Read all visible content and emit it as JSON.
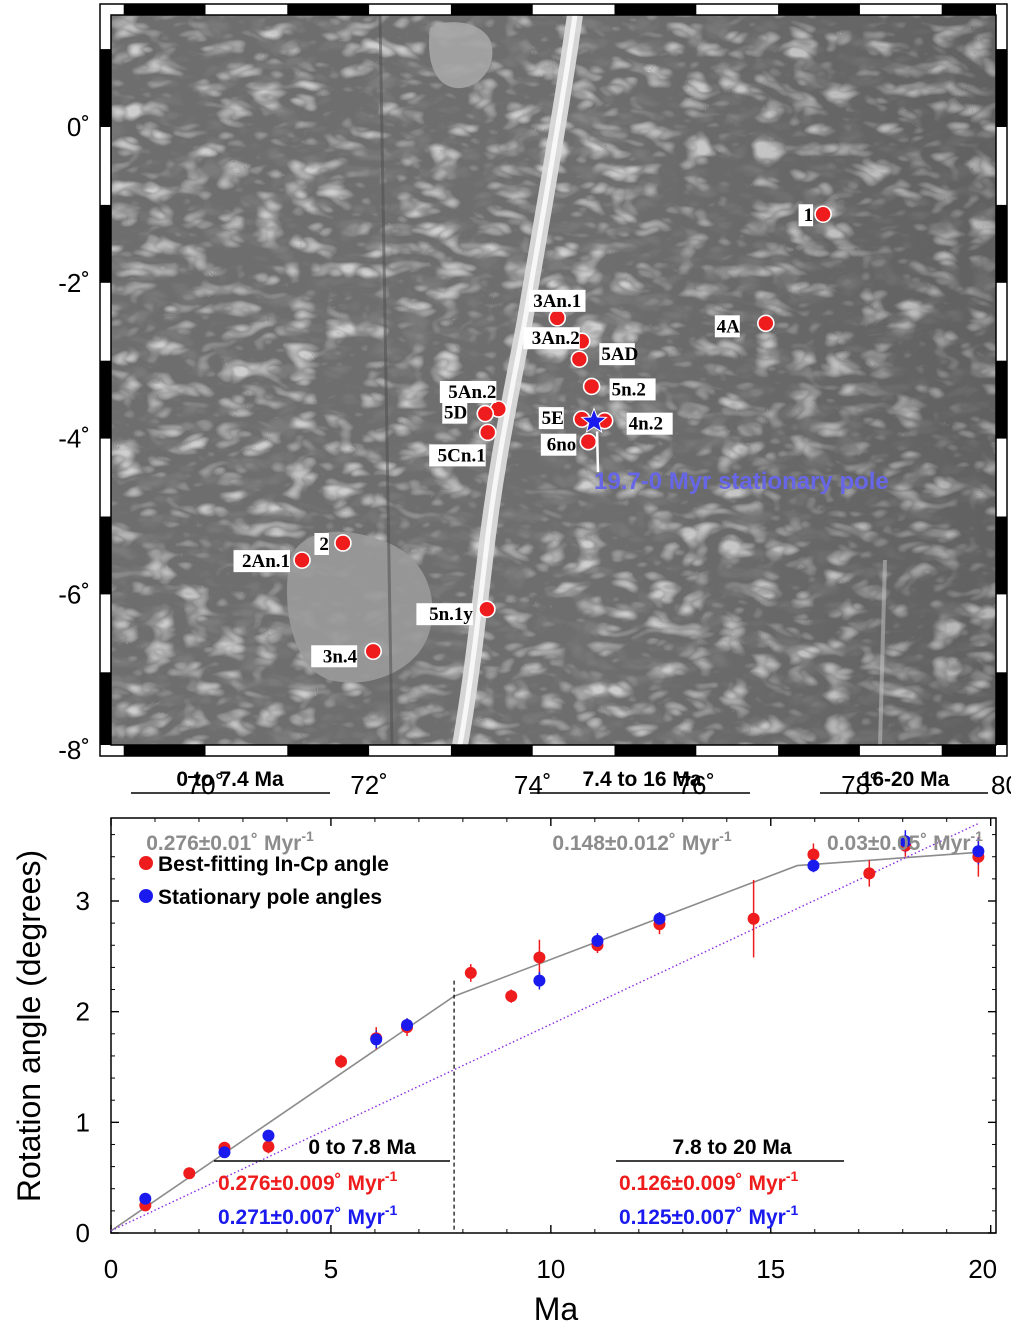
{
  "colors": {
    "red": "#ee1c1c",
    "blue": "#1a1aee",
    "gray": "#8c8c8c",
    "pole_label": "#6666e6",
    "map_base": "#6e6e6e",
    "ridge": "#d9d9d9"
  },
  "map": {
    "lon_ticks": [
      "70˚",
      "72˚",
      "74˚",
      "76˚",
      "78˚",
      "80"
    ],
    "lat_ticks": [
      "0˚",
      "-2˚",
      "-4˚",
      "-6˚",
      "-8˚"
    ],
    "pole_label": "19.7-0 Myr stationary pole",
    "sites": [
      {
        "label": "1",
        "lon": 77.55,
        "lat": -1.12
      },
      {
        "label": "3An.1",
        "lon": 74.3,
        "lat": -2.45
      },
      {
        "label": "4A",
        "lon": 76.85,
        "lat": -2.52
      },
      {
        "label": "3An.2",
        "lon": 74.6,
        "lat": -2.75
      },
      {
        "label": "5AD",
        "lon": 74.57,
        "lat": -2.98
      },
      {
        "label": "5n.2",
        "lon": 74.72,
        "lat": -3.33
      },
      {
        "label": "5An.2",
        "lon": 73.58,
        "lat": -3.62
      },
      {
        "label": "5D",
        "lon": 73.42,
        "lat": -3.68
      },
      {
        "label": "5E",
        "lon": 74.6,
        "lat": -3.75
      },
      {
        "label": "4n.2",
        "lon": 74.88,
        "lat": -3.77
      },
      {
        "label": "5Cn.1",
        "lon": 73.45,
        "lat": -3.92
      },
      {
        "label": "6no",
        "lon": 74.68,
        "lat": -4.04
      },
      {
        "label": "2",
        "lon": 71.68,
        "lat": -5.34
      },
      {
        "label": "2An.1",
        "lon": 71.18,
        "lat": -5.56
      },
      {
        "label": "5n.1y",
        "lon": 73.44,
        "lat": -6.19
      },
      {
        "label": "3n.4",
        "lon": 72.05,
        "lat": -6.73
      }
    ],
    "pole": {
      "lon": 74.75,
      "lat": -3.78
    }
  },
  "chart_data": {
    "type": "scatter",
    "xlabel": "Ma",
    "ylabel": "Rotation angle (degrees)",
    "xlim": [
      0,
      20
    ],
    "ylim": [
      0,
      3.75
    ],
    "x_ticks": [
      "0",
      "5",
      "10",
      "15",
      "20"
    ],
    "y_ticks": [
      "0",
      "1",
      "2",
      "3"
    ],
    "legend": [
      "Best-fitting In-Cp angle",
      "Stationary pole angles"
    ],
    "legend_position": "top-left",
    "series": [
      {
        "name": "Best-fitting In-Cp angle",
        "color": "red",
        "points": [
          {
            "x": 0.78,
            "y": 0.25,
            "err": 0.04
          },
          {
            "x": 1.78,
            "y": 0.54,
            "err": 0.03
          },
          {
            "x": 2.58,
            "y": 0.77,
            "err": 0.04
          },
          {
            "x": 3.58,
            "y": 0.78,
            "err": 0.06
          },
          {
            "x": 5.23,
            "y": 1.55,
            "err": 0.06
          },
          {
            "x": 6.03,
            "y": 1.76,
            "err": 0.1
          },
          {
            "x": 6.73,
            "y": 1.86,
            "err": 0.08
          },
          {
            "x": 8.18,
            "y": 2.35,
            "err": 0.08
          },
          {
            "x": 9.1,
            "y": 2.14,
            "err": 0.06
          },
          {
            "x": 9.74,
            "y": 2.49,
            "err": 0.16
          },
          {
            "x": 11.06,
            "y": 2.6,
            "err": 0.07
          },
          {
            "x": 12.47,
            "y": 2.79,
            "err": 0.09
          },
          {
            "x": 14.61,
            "y": 2.84,
            "err": 0.35
          },
          {
            "x": 15.97,
            "y": 3.42,
            "err": 0.1
          },
          {
            "x": 17.24,
            "y": 3.25,
            "err": 0.12
          },
          {
            "x": 18.06,
            "y": 3.5,
            "err": 0.1
          },
          {
            "x": 19.72,
            "y": 3.4,
            "err": 0.18
          }
        ]
      },
      {
        "name": "Stationary pole angles",
        "color": "blue",
        "points": [
          {
            "x": 0.78,
            "y": 0.31,
            "err": 0.02
          },
          {
            "x": 2.58,
            "y": 0.73,
            "err": 0.04
          },
          {
            "x": 3.58,
            "y": 0.88,
            "err": 0.04
          },
          {
            "x": 6.03,
            "y": 1.75,
            "err": 0.08
          },
          {
            "x": 6.73,
            "y": 1.88,
            "err": 0.06
          },
          {
            "x": 9.74,
            "y": 2.28,
            "err": 0.08
          },
          {
            "x": 11.06,
            "y": 2.64,
            "err": 0.07
          },
          {
            "x": 12.47,
            "y": 2.84,
            "err": 0.06
          },
          {
            "x": 15.97,
            "y": 3.32,
            "err": 0.06
          },
          {
            "x": 18.06,
            "y": 3.54,
            "err": 0.1
          },
          {
            "x": 19.72,
            "y": 3.45,
            "err": 0.12
          }
        ]
      }
    ],
    "piecewise_fit": {
      "color": "gray",
      "points": [
        [
          0,
          0.02
        ],
        [
          7.8,
          2.14
        ],
        [
          15.6,
          3.32
        ],
        [
          19.72,
          3.44
        ]
      ]
    },
    "linear_fit": {
      "color": "purple",
      "style": "dotted",
      "points": [
        [
          0,
          0.02
        ],
        [
          19.72,
          3.7
        ]
      ]
    },
    "divider_x": 7.8,
    "annotations": [
      {
        "title": "0 to 7.4 Ma",
        "rates": [
          {
            "text": "0.276±0.01˚ Myr",
            "color": "gray"
          }
        ]
      },
      {
        "title": "7.4 to 16 Ma",
        "rates": [
          {
            "text": "0.148±0.012˚ Myr",
            "color": "gray"
          }
        ]
      },
      {
        "title": "16-20 Ma",
        "rates": [
          {
            "text": "0.03±0.05˚ Myr",
            "color": "gray"
          }
        ]
      },
      {
        "title": "0 to 7.8 Ma",
        "rates": [
          {
            "text": "0.276±0.009˚ Myr",
            "color": "red"
          },
          {
            "text": "0.271±0.007˚ Myr",
            "color": "blue"
          }
        ]
      },
      {
        "title": "7.8 to 20 Ma",
        "rates": [
          {
            "text": "0.126±0.009˚ Myr",
            "color": "red"
          },
          {
            "text": "0.125±0.007˚ Myr",
            "color": "blue"
          }
        ]
      }
    ],
    "rate_superscript": "-1"
  }
}
